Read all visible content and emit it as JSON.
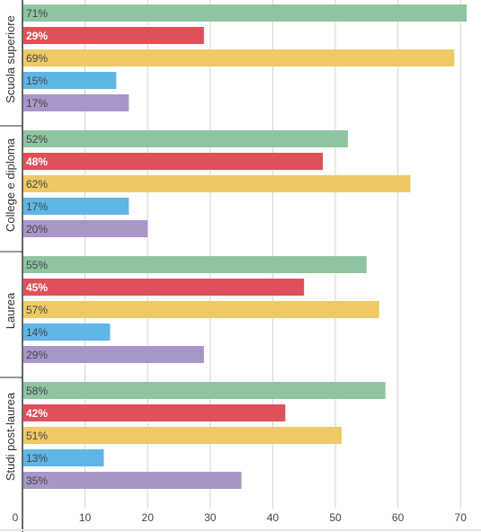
{
  "chart_data": {
    "type": "bar",
    "orientation": "horizontal",
    "grid": true,
    "xlim": [
      0,
      73
    ],
    "x_ticks": [
      0,
      10,
      20,
      30,
      40,
      50,
      60,
      70
    ],
    "categories": [
      "Scuola superiore",
      "College e diploma",
      "Laurea",
      "Studi post-laurea"
    ],
    "series": [
      {
        "color": "#8fc4a1",
        "values": [
          71,
          52,
          55,
          58
        ],
        "labels": [
          "71%",
          "52%",
          "55%",
          "58%"
        ]
      },
      {
        "color": "#e05059",
        "values": [
          29,
          48,
          45,
          42
        ],
        "labels": [
          "29%",
          "48%",
          "45%",
          "42%"
        ]
      },
      {
        "color": "#eec966",
        "values": [
          69,
          62,
          57,
          51
        ],
        "labels": [
          "69%",
          "62%",
          "57%",
          "51%"
        ]
      },
      {
        "color": "#5db6e6",
        "values": [
          15,
          17,
          14,
          13
        ],
        "labels": [
          "15%",
          "17%",
          "14%",
          "13%"
        ]
      },
      {
        "color": "#a996c8",
        "values": [
          17,
          20,
          29,
          35
        ],
        "labels": [
          "17%",
          "20%",
          "29%",
          "35%"
        ]
      }
    ],
    "label_colors": [
      "#444444",
      "#ffffff",
      "#444444",
      "#444444",
      "#444444"
    ],
    "label_bold": [
      false,
      true,
      false,
      false,
      false
    ]
  }
}
